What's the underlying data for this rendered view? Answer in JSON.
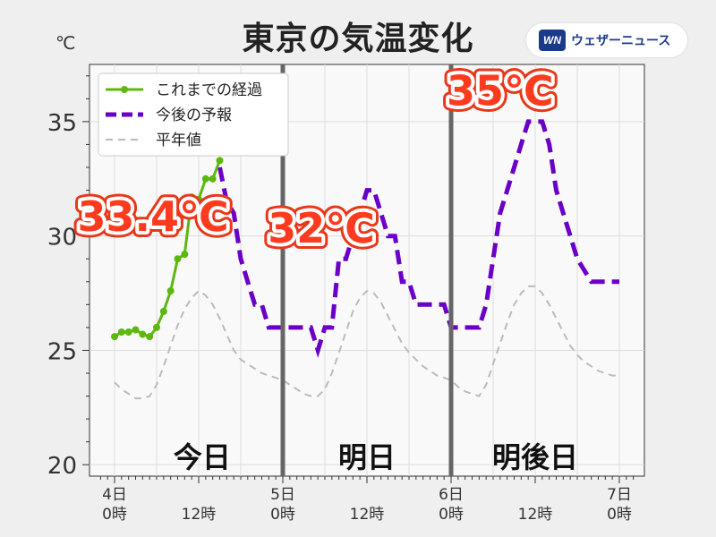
{
  "header": {
    "title": "東京の気温変化",
    "unit": "℃",
    "brand_logo": "WN",
    "brand_name": "ウェザーニュース",
    "brand_icon": "weathernews-logo-icon"
  },
  "chart_data": {
    "type": "line",
    "title": "東京の気温変化",
    "ylabel": "℃",
    "xlim": [
      0,
      72
    ],
    "ylim": [
      19.5,
      37.5
    ],
    "yticks": [
      20,
      25,
      30,
      35
    ],
    "grid": true,
    "legend_position": "top-left",
    "xticks": [
      {
        "x": 0,
        "line1": "4日",
        "line2": "0時"
      },
      {
        "x": 12,
        "line1": "",
        "line2": "12時"
      },
      {
        "x": 24,
        "line1": "5日",
        "line2": "0時"
      },
      {
        "x": 36,
        "line1": "",
        "line2": "12時"
      },
      {
        "x": 48,
        "line1": "6日",
        "line2": "0時"
      },
      {
        "x": 60,
        "line1": "",
        "line2": "12時"
      },
      {
        "x": 72,
        "line1": "7日",
        "line2": "0時"
      }
    ],
    "day_dividers": [
      24,
      48
    ],
    "day_labels": [
      {
        "x": 12.5,
        "text": "今日"
      },
      {
        "x": 36,
        "text": "明日"
      },
      {
        "x": 60,
        "text": "明後日"
      }
    ],
    "series": [
      {
        "name": "これまでの経過",
        "color": "#5cb80e",
        "style": "solid-markers",
        "x": [
          0,
          1,
          2,
          3,
          4,
          5,
          6,
          7,
          8,
          9,
          10,
          11,
          12,
          13,
          14,
          15
        ],
        "y": [
          25.6,
          25.8,
          25.8,
          25.9,
          25.7,
          25.6,
          26.0,
          26.7,
          27.6,
          29.0,
          29.2,
          31.7,
          31.6,
          32.5,
          32.5,
          33.3
        ]
      },
      {
        "name": "今後の予報",
        "color": "#6a00c8",
        "style": "dashed-thick",
        "x": [
          15,
          16,
          17,
          18,
          19,
          20,
          21,
          22,
          23,
          24,
          25,
          26,
          27,
          28,
          29,
          30,
          31,
          32,
          33,
          34,
          35,
          36,
          37,
          38,
          39,
          40,
          41,
          42,
          43,
          44,
          45,
          46,
          47,
          48,
          49,
          50,
          51,
          52,
          53,
          54,
          55,
          56,
          57,
          58,
          59,
          60,
          61,
          62,
          63,
          64,
          65,
          66,
          67,
          68,
          69,
          70,
          71,
          72
        ],
        "y": [
          33.0,
          31.5,
          31.0,
          29.0,
          28.0,
          27.0,
          27.0,
          26.0,
          26.0,
          26.0,
          26.0,
          26.0,
          26.0,
          26.0,
          25.0,
          26.0,
          26.0,
          29.0,
          29.0,
          30.0,
          31.0,
          32.0,
          32.0,
          31.0,
          30.0,
          30.0,
          28.0,
          28.0,
          27.0,
          27.0,
          27.0,
          27.0,
          27.0,
          26.0,
          26.0,
          26.0,
          26.0,
          26.0,
          27.0,
          29.0,
          31.0,
          32.0,
          33.0,
          34.0,
          35.0,
          35.0,
          35.0,
          34.0,
          32.0,
          31.0,
          30.0,
          29.0,
          28.5,
          28.0,
          28.0,
          28.0,
          28.0,
          28.0
        ]
      },
      {
        "name": "平年値",
        "color": "#bbbbbb",
        "style": "dashed-thin",
        "x": [
          0,
          1,
          2,
          3,
          4,
          5,
          6,
          7,
          8,
          9,
          10,
          11,
          12,
          13,
          14,
          15,
          16,
          17,
          18,
          19,
          20,
          21,
          22,
          23,
          24,
          25,
          26,
          27,
          28,
          29,
          30,
          31,
          32,
          33,
          34,
          35,
          36,
          37,
          38,
          39,
          40,
          41,
          42,
          43,
          44,
          45,
          46,
          47,
          48,
          49,
          50,
          51,
          52,
          53,
          54,
          55,
          56,
          57,
          58,
          59,
          60,
          61,
          62,
          63,
          64,
          65,
          66,
          67,
          68,
          69,
          70,
          71,
          72
        ],
        "y": [
          23.6,
          23.3,
          23.1,
          22.9,
          22.9,
          23.0,
          23.5,
          24.3,
          25.2,
          26.1,
          26.8,
          27.3,
          27.6,
          27.4,
          27.0,
          26.4,
          25.7,
          25.0,
          24.6,
          24.4,
          24.2,
          24.0,
          23.9,
          23.8,
          23.7,
          23.5,
          23.3,
          23.1,
          23.0,
          23.0,
          23.3,
          24.0,
          24.9,
          25.8,
          26.7,
          27.3,
          27.6,
          27.5,
          27.1,
          26.5,
          25.9,
          25.3,
          24.9,
          24.6,
          24.3,
          24.1,
          23.9,
          23.8,
          23.7,
          23.4,
          23.2,
          23.1,
          23.0,
          23.5,
          24.4,
          25.3,
          26.2,
          27.0,
          27.5,
          27.8,
          27.8,
          27.5,
          27.0,
          26.4,
          25.8,
          25.2,
          24.8,
          24.5,
          24.3,
          24.1,
          24.0,
          23.9,
          23.9
        ]
      }
    ],
    "annotations": [
      {
        "name": "today-max-callout",
        "text": "33.4℃",
        "x": 5.5,
        "y": 31.0
      },
      {
        "name": "tomorrow-max-callout",
        "text": "32℃",
        "x": 29.5,
        "y": 30.5
      },
      {
        "name": "day-after-max-callout",
        "text": "35℃",
        "x": 55,
        "y": 36.5
      }
    ]
  }
}
